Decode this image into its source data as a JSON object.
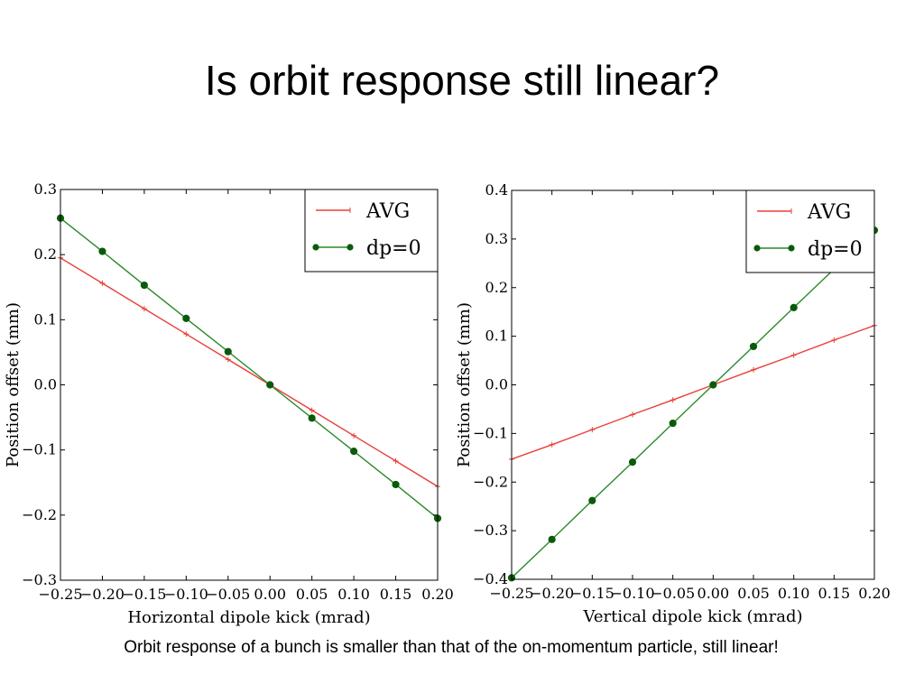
{
  "slide": {
    "title": "Is orbit response still linear?",
    "caption": "Orbit response of a bunch is smaller than that of the on-momentum particle, still linear!"
  },
  "colors": {
    "avg": "#e8403a",
    "dp0": "#2a8a2a",
    "dp0_marker": "#0b5a0b"
  },
  "chart_data": [
    {
      "type": "line",
      "xlabel": "Horizontal dipole kick (mrad)",
      "ylabel": "Position offset (mm)",
      "xlim": [
        -0.25,
        0.2
      ],
      "ylim": [
        -0.3,
        0.3
      ],
      "xticks": [
        -0.25,
        -0.2,
        -0.15,
        -0.1,
        -0.05,
        0.0,
        0.05,
        0.1,
        0.15,
        0.2
      ],
      "xtick_labels": [
        "−0.25",
        "−0.20",
        "−0.15",
        "−0.10",
        "−0.05",
        "0.00",
        "0.05",
        "0.10",
        "0.15",
        "0.20"
      ],
      "yticks": [
        -0.3,
        -0.2,
        -0.1,
        0.0,
        0.1,
        0.2,
        0.3
      ],
      "ytick_labels": [
        "−0.3",
        "−0.2",
        "−0.1",
        "0.0",
        "0.1",
        "0.2",
        "0.3"
      ],
      "legend_position": "top-right",
      "x": [
        -0.25,
        -0.2,
        -0.15,
        -0.1,
        -0.05,
        0.0,
        0.05,
        0.1,
        0.15,
        0.2
      ],
      "series": [
        {
          "name": "AVG",
          "marker": "plus",
          "values": [
            0.195,
            0.156,
            0.117,
            0.078,
            0.039,
            0.0,
            -0.039,
            -0.078,
            -0.117,
            -0.156
          ]
        },
        {
          "name": "dp=0",
          "marker": "dot",
          "values": [
            0.256,
            0.205,
            0.153,
            0.102,
            0.051,
            0.0,
            -0.051,
            -0.102,
            -0.153,
            -0.205
          ]
        }
      ]
    },
    {
      "type": "line",
      "xlabel": "Vertical dipole kick (mrad)",
      "ylabel": "Position offset (mm)",
      "xlim": [
        -0.25,
        0.2
      ],
      "ylim": [
        -0.4,
        0.4
      ],
      "xticks": [
        -0.25,
        -0.2,
        -0.15,
        -0.1,
        -0.05,
        0.0,
        0.05,
        0.1,
        0.15,
        0.2
      ],
      "xtick_labels": [
        "−0.25",
        "−0.20",
        "−0.15",
        "−0.10",
        "−0.05",
        "0.00",
        "0.05",
        "0.10",
        "0.15",
        "0.20"
      ],
      "yticks": [
        -0.4,
        -0.3,
        -0.2,
        -0.1,
        0.0,
        0.1,
        0.2,
        0.3,
        0.4
      ],
      "ytick_labels": [
        "−0.4",
        "−0.3",
        "−0.2",
        "−0.1",
        "0.0",
        "0.1",
        "0.2",
        "0.3",
        "0.4"
      ],
      "legend_position": "top-right",
      "x": [
        -0.25,
        -0.2,
        -0.15,
        -0.1,
        -0.05,
        0.0,
        0.05,
        0.1,
        0.15,
        0.2
      ],
      "series": [
        {
          "name": "AVG",
          "marker": "plus",
          "values": [
            -0.153,
            -0.123,
            -0.092,
            -0.061,
            -0.031,
            0.0,
            0.031,
            0.061,
            0.092,
            0.122
          ]
        },
        {
          "name": "dp=0",
          "marker": "dot",
          "values": [
            -0.397,
            -0.318,
            -0.238,
            -0.159,
            -0.079,
            0.0,
            0.079,
            0.159,
            0.238,
            0.318
          ]
        }
      ]
    }
  ]
}
